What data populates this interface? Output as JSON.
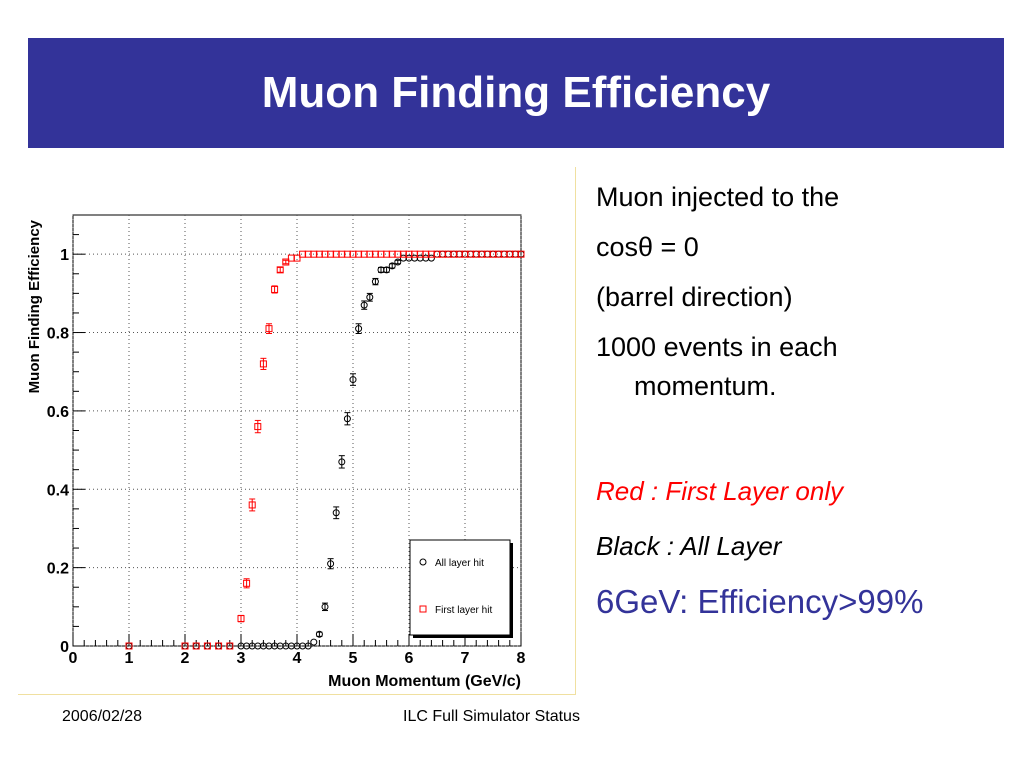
{
  "slide": {
    "title": "Muon Finding Efficiency",
    "lines": [
      "Muon injected to the",
      "cosθ = 0",
      "(barrel direction)",
      "1000 events in each",
      "momentum."
    ],
    "red_legend": "Red   : First Layer only",
    "black_legend": "Black :  All Layer",
    "efficiency_note": "6GeV: Efficiency>99%",
    "accent_color": "#333399",
    "highlight_color": "#ff0000"
  },
  "footer": {
    "date": "2006/02/28",
    "center": "ILC Full Simulator Status"
  },
  "chart_data": {
    "type": "scatter",
    "xlabel": "Muon Momentum (GeV/c)",
    "ylabel": "Muon Finding Efficiency",
    "xlim": [
      0,
      8
    ],
    "ylim": [
      0,
      1.1
    ],
    "x_ticks": [
      "0",
      "1",
      "2",
      "3",
      "4",
      "5",
      "6",
      "7",
      "8"
    ],
    "y_ticks": [
      "0",
      "0.2",
      "0.4",
      "0.6",
      "0.8",
      "1"
    ],
    "grid": true,
    "legend_position": "bottom-right",
    "series": [
      {
        "name": "All layer hit",
        "marker": "circle",
        "color": "#000000",
        "x": [
          1,
          2,
          2.2,
          2.4,
          2.6,
          2.8,
          3,
          3.1,
          3.2,
          3.3,
          3.4,
          3.5,
          3.6,
          3.7,
          3.8,
          3.9,
          4,
          4.1,
          4.2,
          4.3,
          4.4,
          4.5,
          4.6,
          4.7,
          4.8,
          4.9,
          5,
          5.1,
          5.2,
          5.3,
          5.4,
          5.5,
          5.6,
          5.7,
          5.8,
          5.9,
          6,
          6.1,
          6.2,
          6.3,
          6.4,
          6.5,
          6.6,
          6.7,
          6.8,
          6.9,
          7,
          7.1,
          7.2,
          7.3,
          7.4,
          7.5,
          7.6,
          7.7,
          7.8,
          7.9,
          8
        ],
        "y": [
          0,
          0,
          0,
          0,
          0,
          0,
          0,
          0,
          0,
          0,
          0,
          0,
          0,
          0,
          0,
          0,
          0,
          0,
          0,
          0.01,
          0.03,
          0.1,
          0.21,
          0.34,
          0.47,
          0.58,
          0.68,
          0.81,
          0.87,
          0.89,
          0.93,
          0.96,
          0.96,
          0.97,
          0.98,
          0.99,
          0.99,
          0.99,
          0.99,
          0.99,
          0.99,
          1,
          1,
          1,
          1,
          1,
          1,
          1,
          1,
          1,
          1,
          1,
          1,
          1,
          1,
          1,
          1
        ]
      },
      {
        "name": "First layer hit",
        "marker": "square",
        "color": "#ff0000",
        "x": [
          1,
          2,
          2.2,
          2.4,
          2.6,
          2.8,
          3,
          3.1,
          3.2,
          3.3,
          3.4,
          3.5,
          3.6,
          3.7,
          3.8,
          3.9,
          4,
          4.1,
          4.2,
          4.3,
          4.4,
          4.5,
          4.6,
          4.7,
          4.8,
          4.9,
          5,
          5.1,
          5.2,
          5.3,
          5.4,
          5.5,
          5.6,
          5.7,
          5.8,
          5.9,
          6,
          6.1,
          6.2,
          6.3,
          6.4,
          6.5,
          6.6,
          6.7,
          6.8,
          6.9,
          7,
          7.1,
          7.2,
          7.3,
          7.4,
          7.5,
          7.6,
          7.7,
          7.8,
          7.9,
          8
        ],
        "y": [
          0,
          0,
          0,
          0,
          0,
          0,
          0.07,
          0.16,
          0.36,
          0.56,
          0.72,
          0.81,
          0.91,
          0.96,
          0.98,
          0.99,
          0.99,
          1,
          1,
          1,
          1,
          1,
          1,
          1,
          1,
          1,
          1,
          1,
          1,
          1,
          1,
          1,
          1,
          1,
          1,
          1,
          1,
          1,
          1,
          1,
          1,
          1,
          1,
          1,
          1,
          1,
          1,
          1,
          1,
          1,
          1,
          1,
          1,
          1,
          1,
          1,
          1
        ]
      }
    ]
  }
}
